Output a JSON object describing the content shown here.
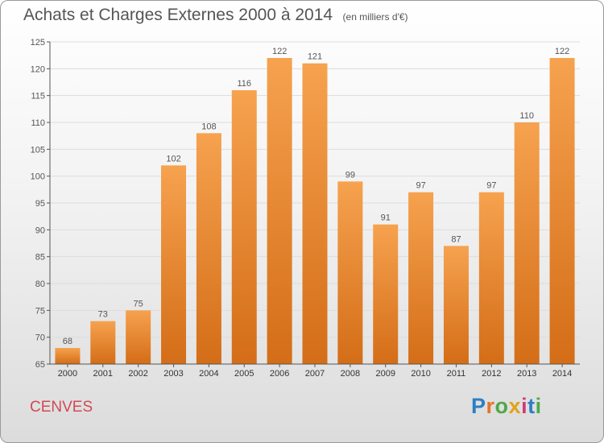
{
  "header": {
    "title": "Achats et Charges Externes 2000 à 2014",
    "unit_note": "(en milliers d'€)"
  },
  "footer": {
    "commune": "CENVES",
    "logo": "Proxiti",
    "logo_letter_colors": [
      "#2b7fc4",
      "#e7732a",
      "#4fa84a",
      "#e2a21b",
      "#d23a78",
      "#2b7fc4",
      "#4fa84a"
    ]
  },
  "colors": {
    "bar_light": "#f6a24f",
    "bar_dark": "#d46d17",
    "axis": "#555555",
    "grid": "#dddddd",
    "commune": "#d04a55"
  },
  "chart_data": {
    "type": "bar",
    "categories": [
      "2000",
      "2001",
      "2002",
      "2003",
      "2004",
      "2005",
      "2006",
      "2007",
      "2008",
      "2009",
      "2010",
      "2011",
      "2012",
      "2013",
      "2014"
    ],
    "values": [
      68,
      73,
      75,
      102,
      108,
      116,
      122,
      121,
      99,
      91,
      97,
      87,
      97,
      110,
      122
    ],
    "title": "Achats et Charges Externes 2000 à 2014",
    "ylim": [
      65,
      125
    ],
    "yticks": [
      65,
      70,
      75,
      80,
      85,
      90,
      95,
      100,
      105,
      110,
      115,
      120,
      125
    ],
    "grid": true,
    "data_labels": true
  }
}
